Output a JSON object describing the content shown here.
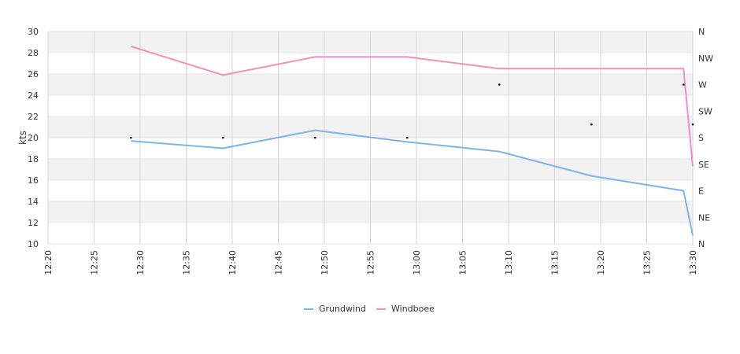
{
  "chart_data": {
    "type": "line",
    "ylabel": "kts",
    "ylim": [
      10,
      30
    ],
    "yticks": [
      "10",
      "12",
      "14",
      "16",
      "18",
      "20",
      "22",
      "24",
      "26",
      "28",
      "30"
    ],
    "xlim": [
      "12:20",
      "13:30"
    ],
    "xticks": [
      "12:20",
      "12:25",
      "12:30",
      "12:35",
      "12:40",
      "12:45",
      "12:50",
      "12:55",
      "13:00",
      "13:05",
      "13:10",
      "13:15",
      "13:20",
      "13:25",
      "13:30"
    ],
    "direction_axis": {
      "labels": [
        "N",
        "NE",
        "E",
        "SE",
        "S",
        "SW",
        "W",
        "NW",
        "N"
      ]
    },
    "series": [
      {
        "name": "Grundwind",
        "color": "#7cb5ec",
        "x": [
          "12:29",
          "12:39",
          "12:49",
          "12:59",
          "13:09",
          "13:19",
          "13:29",
          "13:30"
        ],
        "values": [
          19.7,
          19.0,
          20.7,
          19.6,
          18.7,
          16.4,
          15.0,
          10.8
        ]
      },
      {
        "name": "Windboee",
        "color": "#f28fbf",
        "x": [
          "12:29",
          "12:39",
          "12:49",
          "12:59",
          "13:09",
          "13:19",
          "13:29",
          "13:30"
        ],
        "values": [
          28.6,
          25.9,
          27.6,
          27.6,
          26.5,
          26.5,
          26.5,
          17.3
        ]
      }
    ],
    "direction_points": [
      {
        "x": "12:29",
        "direction": "S"
      },
      {
        "x": "12:39",
        "direction": "S"
      },
      {
        "x": "12:49",
        "direction": "S"
      },
      {
        "x": "12:59",
        "direction": "S"
      },
      {
        "x": "13:09",
        "direction": "W"
      },
      {
        "x": "13:19",
        "direction": "SSW"
      },
      {
        "x": "13:29",
        "direction": "W"
      },
      {
        "x": "13:30",
        "direction": "SSW"
      }
    ],
    "grid": true,
    "legend_position": "bottom-center"
  }
}
